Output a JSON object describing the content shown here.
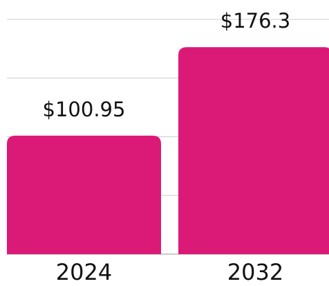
{
  "chart_data": {
    "type": "bar",
    "categories": [
      "2024",
      "2032"
    ],
    "values": [
      100.95,
      176.3
    ],
    "value_labels": [
      "$100.95",
      "$176.3"
    ],
    "color": "#db1a77",
    "ylim": [
      0,
      200
    ],
    "yticks": [
      0,
      50,
      100,
      150,
      200
    ],
    "grid": true
  }
}
